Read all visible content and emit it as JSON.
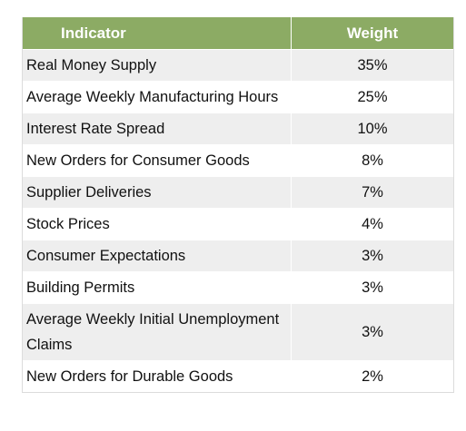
{
  "table": {
    "headers": {
      "indicator": "Indicator",
      "weight": "Weight"
    },
    "rows": [
      {
        "indicator": "Real Money Supply",
        "weight": "35%"
      },
      {
        "indicator": "Average Weekly Manufacturing Hours",
        "weight": "25%"
      },
      {
        "indicator": "Interest Rate Spread",
        "weight": "10%"
      },
      {
        "indicator": "New Orders for Consumer Goods",
        "weight": "8%"
      },
      {
        "indicator": "Supplier Deliveries",
        "weight": "7%"
      },
      {
        "indicator": "Stock Prices",
        "weight": "4%"
      },
      {
        "indicator": "Consumer Expectations",
        "weight": "3%"
      },
      {
        "indicator": "Building Permits",
        "weight": "3%"
      },
      {
        "indicator": "Average Weekly Initial Unemployment Claims",
        "weight": "3%"
      },
      {
        "indicator": "New Orders for Durable Goods",
        "weight": "2%"
      }
    ],
    "colors": {
      "header_bg": "#8cab64",
      "header_text": "#ffffff",
      "row_odd_bg": "#eeeeee",
      "row_even_bg": "#ffffff"
    }
  }
}
